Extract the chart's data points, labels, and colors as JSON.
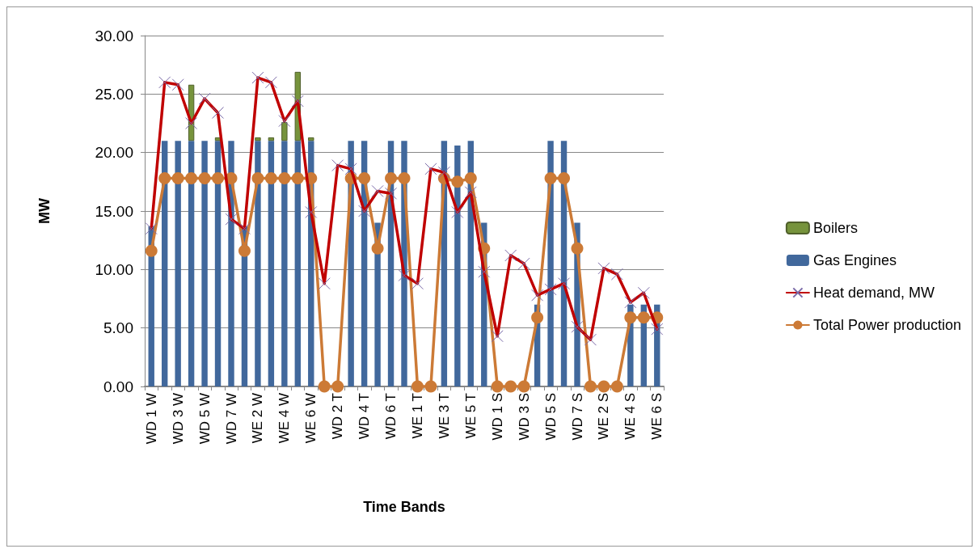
{
  "chart_data": {
    "type": "bar",
    "stacked": true,
    "xlabel": "Time Bands",
    "ylabel": "MW",
    "categories": [
      "WD 1 W",
      null,
      "WD 3 W",
      null,
      "WD 5 W",
      null,
      "WD 7 W",
      null,
      "WE 2 W",
      null,
      "WE 4 W",
      null,
      "WE 6 W",
      null,
      "WD 2 T",
      null,
      "WD 4 T",
      null,
      "WD 6 T",
      null,
      "WE 1 T",
      null,
      "WE 3 T",
      null,
      "WE 5 T",
      null,
      "WD 1 S",
      null,
      "WD 3 S",
      null,
      "WD 5 S",
      null,
      "WD 7 S",
      null,
      "WE 2 S",
      null,
      "WE 4 S",
      null,
      "WE 6 S"
    ],
    "ylim": [
      0,
      30
    ],
    "yticks": [
      {
        "value": 0,
        "label": "0.00"
      },
      {
        "value": 5,
        "label": "5.00"
      },
      {
        "value": 10,
        "label": "10.00"
      },
      {
        "value": 15,
        "label": "15.00"
      },
      {
        "value": 20,
        "label": "20.00"
      },
      {
        "value": 25,
        "label": "25.00"
      },
      {
        "value": 30,
        "label": "30.00"
      }
    ],
    "grid": "y",
    "legend": "right",
    "series": [
      {
        "name": "Gas Engines",
        "color": "#41689c",
        "values": [
          13.7,
          21,
          21,
          21,
          21,
          21,
          21,
          13.7,
          21,
          21,
          21,
          21,
          21,
          0,
          0,
          21,
          21,
          14,
          21,
          21,
          0,
          0,
          21,
          20.6,
          21,
          14,
          0,
          0,
          0,
          7,
          21,
          21,
          14,
          0,
          0,
          0,
          7,
          7,
          7
        ]
      },
      {
        "name": "Boilers",
        "color": "#76933c",
        "values": [
          null,
          null,
          null,
          4.8,
          null,
          0.3,
          null,
          null,
          0.3,
          0.3,
          1.6,
          5.9,
          0.3,
          null,
          null,
          null,
          null,
          null,
          null,
          null,
          null,
          null,
          null,
          null,
          null,
          null,
          null,
          null,
          null,
          null,
          null,
          null,
          null,
          null,
          null,
          null,
          null,
          null,
          null
        ]
      },
      {
        "name": "Heat demand, MW",
        "type": "line",
        "marker": "cross",
        "color": "#c00000",
        "values": [
          13.5,
          26,
          25.8,
          22.5,
          24.6,
          23.4,
          14.3,
          13.5,
          26.4,
          26,
          22.7,
          24.4,
          14.9,
          8.8,
          18.9,
          18.6,
          15,
          16.7,
          16.5,
          9.5,
          8.8,
          18.6,
          18.3,
          14.9,
          16.6,
          9.8,
          4.3,
          11.2,
          10.5,
          7.8,
          8.3,
          8.8,
          5.1,
          4,
          10.1,
          9.6,
          7.2,
          8,
          4.9
        ]
      },
      {
        "name": "Total Power production",
        "type": "line",
        "marker": "circle",
        "color": "#cc7a36",
        "values": [
          11.6,
          17.8,
          17.8,
          17.8,
          17.8,
          17.8,
          17.8,
          11.6,
          17.8,
          17.8,
          17.8,
          17.8,
          17.8,
          0,
          0,
          17.8,
          17.8,
          11.8,
          17.8,
          17.8,
          0,
          0,
          17.8,
          17.5,
          17.8,
          11.8,
          0,
          0,
          0,
          5.9,
          17.8,
          17.8,
          11.8,
          0,
          0,
          0,
          5.9,
          5.9,
          5.9
        ]
      }
    ]
  }
}
